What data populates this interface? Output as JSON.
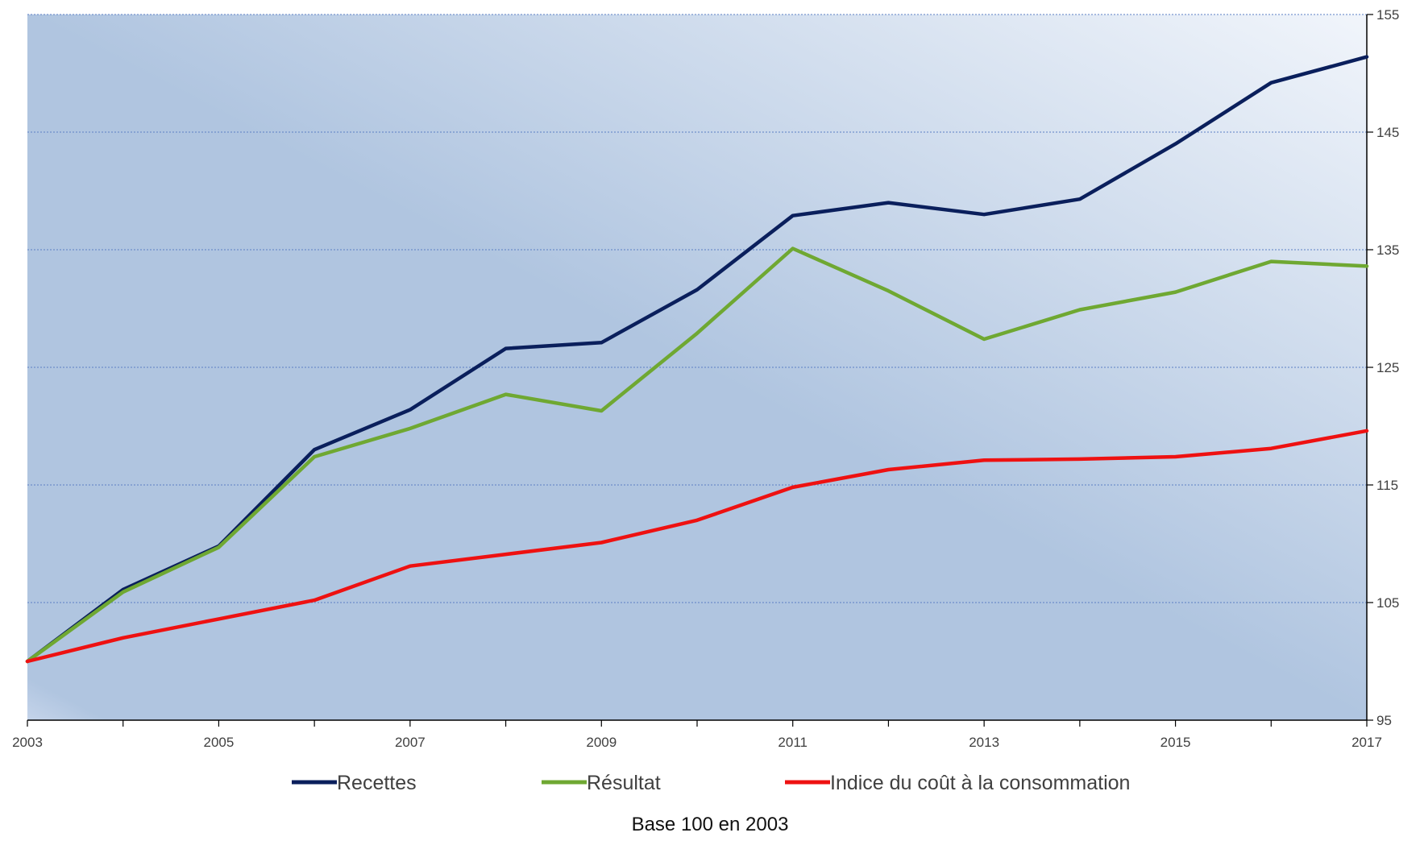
{
  "chart_data": {
    "type": "line",
    "x": [
      2003,
      2004,
      2005,
      2006,
      2007,
      2008,
      2009,
      2010,
      2011,
      2012,
      2013,
      2014,
      2015,
      2016,
      2017
    ],
    "x_tick_labels": [
      "2003",
      "2005",
      "2007",
      "2009",
      "2011",
      "2013",
      "2015",
      "2017"
    ],
    "y_tick_labels": [
      "95",
      "105",
      "115",
      "125",
      "135",
      "145",
      "155"
    ],
    "xlim": [
      2003,
      2017
    ],
    "ylim": [
      95,
      155
    ],
    "y_ticks": [
      95,
      105,
      115,
      125,
      135,
      145,
      155
    ],
    "grid": true,
    "legend_position": "bottom",
    "series": [
      {
        "name": "Recettes",
        "color": "#0a1f5c",
        "values": [
          100,
          106.1,
          109.8,
          118,
          121.4,
          126.6,
          127.1,
          131.6,
          137.9,
          139,
          138,
          139.3,
          144,
          149.2,
          151.4
        ]
      },
      {
        "name": "Résultat",
        "color": "#6fa832",
        "values": [
          100,
          105.9,
          109.7,
          117.4,
          119.8,
          122.7,
          121.3,
          127.9,
          135.1,
          131.5,
          127.4,
          129.9,
          131.4,
          134,
          133.6
        ]
      },
      {
        "name": "Indice du coût à la consommation",
        "color": "#ee1111",
        "values": [
          100,
          102,
          103.6,
          105.2,
          108.1,
          109.1,
          110.1,
          112,
          114.8,
          116.3,
          117.1,
          117.2,
          117.4,
          118.1,
          119.6
        ]
      }
    ],
    "caption": "Base 100 en 2003"
  }
}
